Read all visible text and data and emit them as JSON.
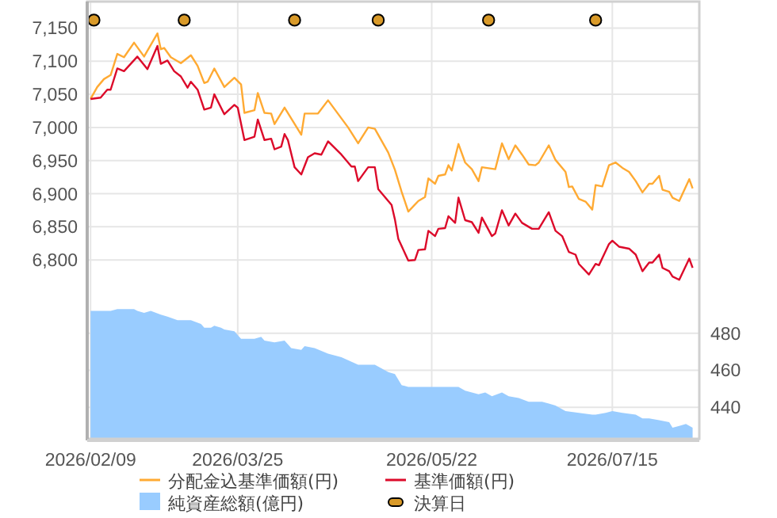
{
  "chart_data": {
    "type": "line",
    "xlim": [
      "2026-02-08",
      "2026-08-10"
    ],
    "xticks": [
      {
        "value": "2026-02-09",
        "label": "2026/02/09"
      },
      {
        "value": "2026-03-25",
        "label": "2026/03/25"
      },
      {
        "value": "2026-05-22",
        "label": "2026/05/22"
      },
      {
        "value": "2026-07-15",
        "label": "2026/07/15"
      }
    ],
    "ylim": [
      6530,
      7190
    ],
    "yticks": [
      {
        "value": 6800,
        "label": "6,800"
      },
      {
        "value": 6850,
        "label": "6,850"
      },
      {
        "value": 6900,
        "label": "6,900"
      },
      {
        "value": 6950,
        "label": "6,950"
      },
      {
        "value": 7000,
        "label": "7,000"
      },
      {
        "value": 7050,
        "label": "7,050"
      },
      {
        "value": 7100,
        "label": "7,100"
      },
      {
        "value": 7150,
        "label": "7,150"
      }
    ],
    "y2lim": [
      423,
      659
    ],
    "y2ticks": [
      440,
      460,
      480
    ],
    "grid": true,
    "legend": "bottom",
    "series": [
      {
        "name": "分配金込基準価額(円)",
        "color": "#ffaa33",
        "x": [
          "2026-02-09",
          "2026-02-11",
          "2026-02-13",
          "2026-02-15",
          "2026-02-17",
          "2026-02-19",
          "2026-02-22",
          "2026-02-25",
          "2026-03-01",
          "2026-03-02",
          "2026-03-03",
          "2026-03-05",
          "2026-03-08",
          "2026-03-11",
          "2026-03-13",
          "2026-03-15",
          "2026-03-16",
          "2026-03-18",
          "2026-03-21",
          "2026-03-24",
          "2026-03-26",
          "2026-03-27",
          "2026-03-30",
          "2026-03-31",
          "2026-04-02",
          "2026-04-04",
          "2026-04-05",
          "2026-04-08",
          "2026-04-13",
          "2026-04-14",
          "2026-04-18",
          "2026-04-21",
          "2026-04-27",
          "2026-04-30",
          "2026-05-03",
          "2026-05-05",
          "2026-05-09",
          "2026-05-11",
          "2026-05-13",
          "2026-05-15",
          "2026-05-18",
          "2026-05-20",
          "2026-05-21",
          "2026-05-23",
          "2026-05-24",
          "2026-05-26",
          "2026-05-27",
          "2026-05-28",
          "2026-05-30",
          "2026-06-01",
          "2026-06-03",
          "2026-06-05",
          "2026-06-06",
          "2026-06-10",
          "2026-06-12",
          "2026-06-14",
          "2026-06-16",
          "2026-06-18",
          "2026-06-20",
          "2026-06-22",
          "2026-06-23",
          "2026-06-26",
          "2026-06-28",
          "2026-07-01",
          "2026-07-02",
          "2026-07-03",
          "2026-07-05",
          "2026-07-07",
          "2026-07-09",
          "2026-07-10",
          "2026-07-12",
          "2026-07-14",
          "2026-07-16",
          "2026-07-18",
          "2026-07-20",
          "2026-07-22",
          "2026-07-24",
          "2026-07-26",
          "2026-07-27",
          "2026-07-29",
          "2026-07-30",
          "2026-08-01",
          "2026-08-02",
          "2026-08-04",
          "2026-08-07",
          "2026-08-08"
        ],
        "values": [
          7043,
          7061,
          7073,
          7079,
          7111,
          7106,
          7128,
          7107,
          7142,
          7118,
          7120,
          7106,
          7097,
          7109,
          7093,
          7067,
          7069,
          7089,
          7061,
          7075,
          7065,
          7022,
          7026,
          7052,
          7022,
          7021,
          7005,
          7030,
          6989,
          7021,
          7021,
          7041,
          7000,
          6976,
          7000,
          6998,
          6962,
          6936,
          6903,
          6873,
          6889,
          6895,
          6923,
          6915,
          6927,
          6929,
          6943,
          6935,
          6975,
          6947,
          6937,
          6919,
          6940,
          6937,
          6976,
          6952,
          6973,
          6959,
          6944,
          6943,
          6947,
          6973,
          6951,
          6933,
          6910,
          6911,
          6892,
          6888,
          6876,
          6913,
          6911,
          6943,
          6947,
          6939,
          6933,
          6919,
          6902,
          6915,
          6915,
          6927,
          6906,
          6903,
          6894,
          6889,
          6922,
          6908
        ]
      },
      {
        "name": "基準価額(円)",
        "color": "#dc0a2a",
        "x": [
          "2026-02-09",
          "2026-02-12",
          "2026-02-14",
          "2026-02-15",
          "2026-02-17",
          "2026-02-19",
          "2026-02-23",
          "2026-02-26",
          "2026-03-01",
          "2026-03-02",
          "2026-03-04",
          "2026-03-06",
          "2026-03-08",
          "2026-03-10",
          "2026-03-11",
          "2026-03-13",
          "2026-03-15",
          "2026-03-17",
          "2026-03-18",
          "2026-03-21",
          "2026-03-24",
          "2026-03-25",
          "2026-03-27",
          "2026-03-30",
          "2026-03-31",
          "2026-04-02",
          "2026-04-04",
          "2026-04-05",
          "2026-04-07",
          "2026-04-08",
          "2026-04-09",
          "2026-04-11",
          "2026-04-13",
          "2026-04-15",
          "2026-04-17",
          "2026-04-19",
          "2026-04-21",
          "2026-04-25",
          "2026-04-28",
          "2026-04-29",
          "2026-04-30",
          "2026-05-03",
          "2026-05-05",
          "2026-05-06",
          "2026-05-10",
          "2026-05-11",
          "2026-05-12",
          "2026-05-15",
          "2026-05-17",
          "2026-05-18",
          "2026-05-20",
          "2026-05-21",
          "2026-05-23",
          "2026-05-24",
          "2026-05-26",
          "2026-05-27",
          "2026-05-29",
          "2026-05-30",
          "2026-06-01",
          "2026-06-03",
          "2026-06-05",
          "2026-06-06",
          "2026-06-09",
          "2026-06-10",
          "2026-06-12",
          "2026-06-14",
          "2026-06-16",
          "2026-06-18",
          "2026-06-21",
          "2026-06-23",
          "2026-06-26",
          "2026-06-28",
          "2026-06-30",
          "2026-07-02",
          "2026-07-04",
          "2026-07-05",
          "2026-07-08",
          "2026-07-10",
          "2026-07-11",
          "2026-07-14",
          "2026-07-15",
          "2026-07-17",
          "2026-07-20",
          "2026-07-22",
          "2026-07-24",
          "2026-07-26",
          "2026-07-27",
          "2026-07-29",
          "2026-07-30",
          "2026-08-01",
          "2026-08-02",
          "2026-08-04",
          "2026-08-07",
          "2026-08-08"
        ],
        "values": [
          7043,
          7045,
          7057,
          7057,
          7089,
          7085,
          7107,
          7088,
          7123,
          7096,
          7101,
          7085,
          7077,
          7060,
          7069,
          7057,
          7027,
          7030,
          7050,
          7020,
          7034,
          7030,
          6981,
          6986,
          7012,
          6981,
          6983,
          6967,
          6971,
          6990,
          6981,
          6940,
          6929,
          6955,
          6961,
          6959,
          6979,
          6959,
          6941,
          6941,
          6919,
          6940,
          6940,
          6907,
          6883,
          6861,
          6832,
          6799,
          6800,
          6815,
          6816,
          6844,
          6836,
          6847,
          6848,
          6866,
          6856,
          6894,
          6860,
          6857,
          6841,
          6864,
          6836,
          6840,
          6875,
          6852,
          6870,
          6856,
          6847,
          6847,
          6872,
          6844,
          6836,
          6812,
          6808,
          6794,
          6778,
          6794,
          6792,
          6824,
          6829,
          6820,
          6817,
          6808,
          6783,
          6796,
          6796,
          6808,
          6788,
          6783,
          6775,
          6770,
          6802,
          6788
        ]
      },
      {
        "name": "純資産総額(億円)",
        "type": "area",
        "axis": "y2",
        "color": "#99ccff",
        "x": [
          "2026-02-09",
          "2026-02-15",
          "2026-02-17",
          "2026-02-22",
          "2026-02-23",
          "2026-02-25",
          "2026-02-27",
          "2026-03-02",
          "2026-03-04",
          "2026-03-07",
          "2026-03-11",
          "2026-03-14",
          "2026-03-15",
          "2026-03-17",
          "2026-03-18",
          "2026-03-20",
          "2026-03-21",
          "2026-03-24",
          "2026-03-26",
          "2026-03-30",
          "2026-04-01",
          "2026-04-02",
          "2026-04-05",
          "2026-04-08",
          "2026-04-10",
          "2026-04-13",
          "2026-04-14",
          "2026-04-17",
          "2026-04-21",
          "2026-04-25",
          "2026-04-30",
          "2026-05-05",
          "2026-05-09",
          "2026-05-11",
          "2026-05-13",
          "2026-05-15",
          "2026-05-20",
          "2026-05-21",
          "2026-05-26",
          "2026-05-28",
          "2026-05-30",
          "2026-06-01",
          "2026-06-05",
          "2026-06-07",
          "2026-06-09",
          "2026-06-12",
          "2026-06-14",
          "2026-06-17",
          "2026-06-20",
          "2026-06-24",
          "2026-06-26",
          "2026-06-28",
          "2026-07-01",
          "2026-07-05",
          "2026-07-09",
          "2026-07-10",
          "2026-07-13",
          "2026-07-15",
          "2026-07-18",
          "2026-07-22",
          "2026-07-24",
          "2026-07-26",
          "2026-07-29",
          "2026-08-01",
          "2026-08-02",
          "2026-08-04",
          "2026-08-06",
          "2026-08-08"
        ],
        "values": [
          492,
          492,
          493,
          493,
          492,
          491,
          492,
          490,
          489,
          487,
          487,
          485,
          483,
          483,
          484,
          483,
          482,
          481,
          477,
          477,
          478,
          476,
          475,
          476,
          472,
          471,
          473,
          472,
          469,
          467,
          463,
          463,
          459,
          458,
          452,
          451,
          451,
          451,
          451,
          451,
          451,
          449,
          447,
          448,
          446,
          448,
          446,
          445,
          443,
          443,
          442,
          441,
          438,
          437,
          436,
          436,
          437,
          438,
          437,
          436,
          434,
          434,
          433,
          432,
          429,
          430,
          431,
          429
        ]
      },
      {
        "name": "決算日",
        "type": "scatter",
        "marker": "circle",
        "color": "#d99a29",
        "x": [
          "2026-02-10",
          "2026-03-09",
          "2026-04-11",
          "2026-05-06",
          "2026-06-08",
          "2026-07-10"
        ],
        "values": [
          7162,
          7162,
          7162,
          7162,
          7162,
          7162
        ]
      }
    ]
  }
}
